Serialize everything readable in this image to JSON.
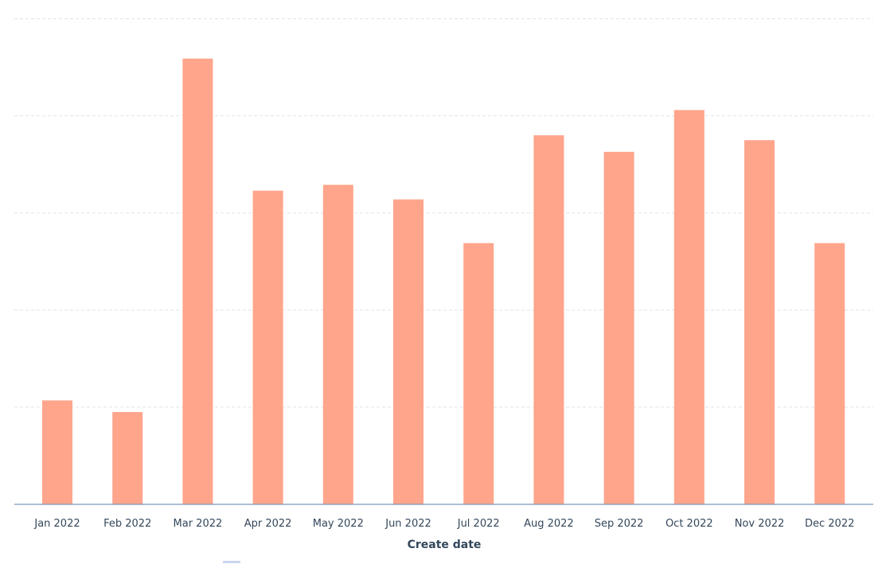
{
  "chart_data": {
    "type": "bar",
    "categories": [
      "Jan 2022",
      "Feb 2022",
      "Mar 2022",
      "Apr 2022",
      "May 2022",
      "Jun 2022",
      "Jul 2022",
      "Aug 2022",
      "Sep 2022",
      "Oct 2022",
      "Nov 2022",
      "Dec 2022"
    ],
    "values": [
      10.7,
      9.5,
      45.9,
      32.3,
      32.9,
      31.4,
      26.9,
      38.0,
      36.3,
      40.6,
      37.5,
      26.9
    ],
    "xlabel": "Create date",
    "ylabel": "",
    "ylim": [
      0,
      50
    ],
    "y_gridline_step": 10,
    "y_tick_labels_shown": false,
    "grid": true,
    "bar_color": "#ffa58b",
    "gridline_color": "#dfe3eb",
    "baseline_color": "#7c98b6",
    "text_color": "#33475b",
    "legend_swatch_color": "#c8d6ee"
  }
}
